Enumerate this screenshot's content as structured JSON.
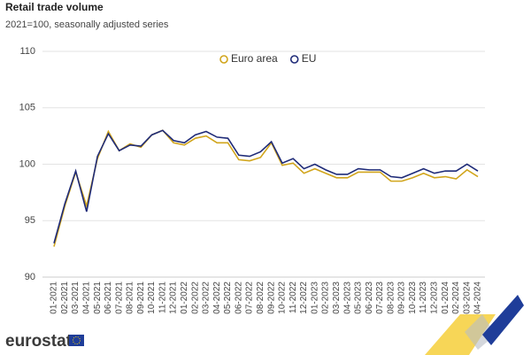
{
  "chart_data": {
    "type": "line",
    "title": "Retail trade volume",
    "subtitle": "2021=100, seasonally adjusted series",
    "categories": [
      "01-2021",
      "02-2021",
      "03-2021",
      "04-2021",
      "05-2021",
      "06-2021",
      "07-2021",
      "08-2021",
      "09-2021",
      "10-2021",
      "11-2021",
      "12-2021",
      "01-2022",
      "02-2022",
      "03-2022",
      "04-2022",
      "05-2022",
      "06-2022",
      "07-2022",
      "08-2022",
      "09-2022",
      "10-2022",
      "11-2022",
      "12-2022",
      "01-2023",
      "02-2023",
      "03-2023",
      "04-2023",
      "05-2023",
      "06-2023",
      "07-2023",
      "08-2023",
      "09-2023",
      "10-2023",
      "11-2023",
      "12-2023",
      "01-2024",
      "02-2024",
      "03-2024",
      "04-2024"
    ],
    "series": [
      {
        "name": "Euro area",
        "color": "#d1a51c",
        "values": [
          92.7,
          96.3,
          99.3,
          96.3,
          100.5,
          102.9,
          101.2,
          101.8,
          101.5,
          102.6,
          103.0,
          101.9,
          101.7,
          102.3,
          102.5,
          101.9,
          101.9,
          100.4,
          100.3,
          100.6,
          101.9,
          99.9,
          100.1,
          99.2,
          99.6,
          99.2,
          98.8,
          98.8,
          99.3,
          99.3,
          99.3,
          98.5,
          98.5,
          98.8,
          99.2,
          98.8,
          98.9,
          98.7,
          99.5,
          98.9
        ]
      },
      {
        "name": "EU",
        "color": "#1f2b78",
        "values": [
          93.0,
          96.5,
          99.4,
          95.8,
          100.7,
          102.7,
          101.2,
          101.7,
          101.6,
          102.6,
          103.0,
          102.1,
          101.9,
          102.6,
          102.9,
          102.4,
          102.3,
          100.8,
          100.7,
          101.1,
          102.0,
          100.1,
          100.5,
          99.6,
          100.0,
          99.5,
          99.1,
          99.1,
          99.6,
          99.5,
          99.5,
          98.9,
          98.8,
          99.2,
          99.6,
          99.2,
          99.4,
          99.4,
          100.0,
          99.4
        ]
      }
    ],
    "ylim": [
      90,
      110
    ],
    "yticks": [
      90,
      95,
      100,
      105,
      110
    ],
    "grid": true,
    "legend": "top",
    "logo": "eurostat"
  }
}
